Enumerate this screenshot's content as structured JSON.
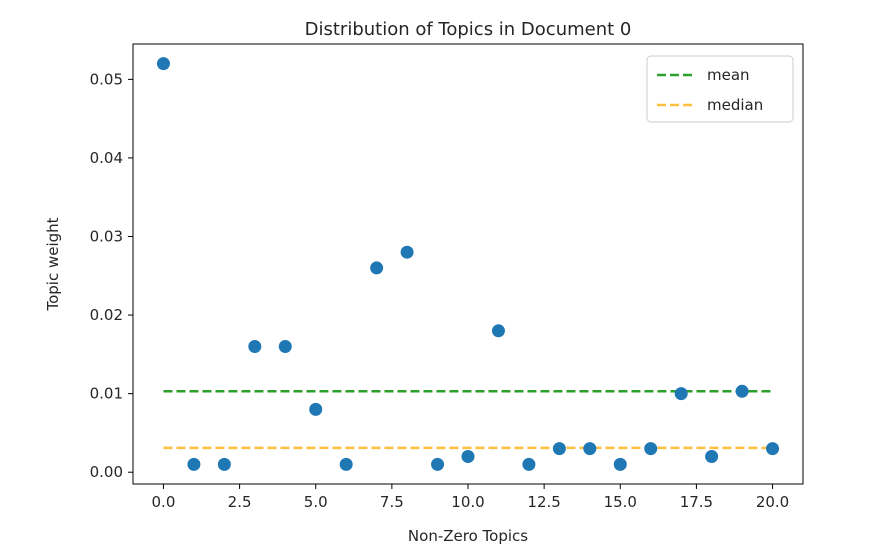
{
  "chart_data": {
    "type": "scatter",
    "title": "Distribution of Topics in Document 0",
    "xlabel": "Non-Zero Topics",
    "ylabel": "Topic weight",
    "xlim": [
      -1.0,
      21.0
    ],
    "ylim": [
      -0.0015,
      0.0545
    ],
    "xticks": [
      0.0,
      2.5,
      5.0,
      7.5,
      10.0,
      12.5,
      15.0,
      17.5,
      20.0
    ],
    "xtick_labels": [
      "0.0",
      "2.5",
      "5.0",
      "7.5",
      "10.0",
      "12.5",
      "15.0",
      "17.5",
      "20.0"
    ],
    "yticks": [
      0.0,
      0.01,
      0.02,
      0.03,
      0.04,
      0.05
    ],
    "ytick_labels": [
      "0.00",
      "0.01",
      "0.02",
      "0.03",
      "0.04",
      "0.05"
    ],
    "grid": false,
    "legend_position": "top-right",
    "point_color": "#1f77b4",
    "points": {
      "x": [
        0,
        1,
        2,
        3,
        4,
        5,
        6,
        7,
        8,
        9,
        10,
        11,
        12,
        13,
        14,
        15,
        16,
        17,
        18,
        19,
        20
      ],
      "y": [
        0.052,
        0.001,
        0.001,
        0.016,
        0.016,
        0.008,
        0.001,
        0.026,
        0.028,
        0.001,
        0.002,
        0.018,
        0.001,
        0.003,
        0.003,
        0.001,
        0.003,
        0.01,
        0.002,
        0.0103,
        0.003
      ]
    },
    "lines": [
      {
        "name": "mean",
        "value": 0.0103,
        "x_range": [
          0,
          20
        ],
        "color": "#2ca02c",
        "style": "dashed"
      },
      {
        "name": "median",
        "value": 0.0031,
        "x_range": [
          0,
          20
        ],
        "color": "#ffbf3f",
        "style": "dashed"
      }
    ]
  }
}
